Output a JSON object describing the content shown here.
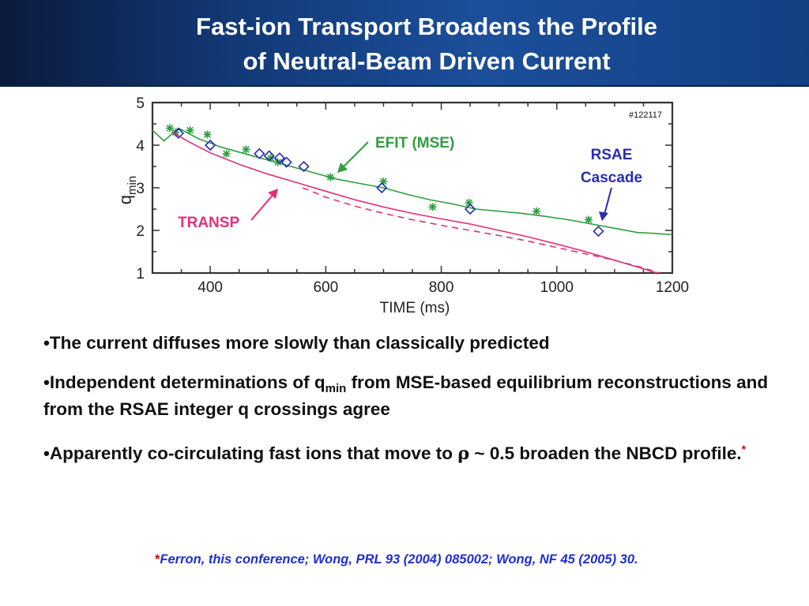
{
  "title": {
    "line1": "Fast-ion Transport Broadens the Profile",
    "line2": "of Neutral-Beam Driven Current"
  },
  "colors": {
    "efit": "#2f9e3f",
    "transp": "#e0307a",
    "rsae": "#2a2db0",
    "arrow_efit": "#2f9e3f",
    "arrow_transp": "#e0307a",
    "arrow_rsae": "#2a2db0"
  },
  "chart_data": {
    "type": "line",
    "xlabel": "TIME (ms)",
    "ylabel_main": "q",
    "ylabel_sub": "min",
    "xlim": [
      300,
      1200
    ],
    "ylim": [
      1,
      5
    ],
    "xticks": [
      400,
      600,
      800,
      1000,
      1200
    ],
    "yticks": [
      1,
      2,
      3,
      4,
      5
    ],
    "shot_label": "#122117",
    "annotations": {
      "efit": "EFIT (MSE)",
      "rsae_line1": "RSAE",
      "rsae_line2": "Cascade",
      "transp": "TRANSP"
    },
    "series": [
      {
        "key": "efit_line",
        "style": "solid",
        "color": "efit",
        "x": [
          300,
          320,
          345,
          380,
          420,
          460,
          500,
          540,
          580,
          620,
          660,
          700,
          740,
          780,
          820,
          860,
          900,
          940,
          980,
          1020,
          1060,
          1100,
          1140,
          1170,
          1200
        ],
        "y": [
          4.35,
          4.1,
          4.4,
          4.15,
          3.95,
          3.8,
          3.65,
          3.5,
          3.35,
          3.2,
          3.1,
          3.0,
          2.85,
          2.72,
          2.62,
          2.5,
          2.45,
          2.4,
          2.33,
          2.25,
          2.15,
          2.05,
          1.95,
          1.93,
          1.9
        ]
      },
      {
        "key": "efit_points",
        "style": "star",
        "color": "efit",
        "x": [
          330,
          340,
          365,
          395,
          428,
          462,
          505,
          517,
          608,
          700,
          785,
          848,
          965,
          1055
        ],
        "y": [
          4.4,
          4.3,
          4.35,
          4.25,
          3.8,
          3.9,
          3.7,
          3.6,
          3.25,
          3.15,
          2.55,
          2.65,
          2.45,
          2.25
        ]
      },
      {
        "key": "rsae_points",
        "style": "diamond",
        "color": "rsae",
        "x": [
          345,
          400,
          485,
          502,
          520,
          532,
          562,
          697,
          850,
          1072
        ],
        "y": [
          4.28,
          4.0,
          3.8,
          3.75,
          3.7,
          3.6,
          3.5,
          3.0,
          2.5,
          1.98
        ]
      },
      {
        "key": "transp_solid",
        "style": "solid",
        "color": "transp",
        "x": [
          335,
          360,
          400,
          450,
          500,
          550,
          600,
          650,
          700,
          750,
          800,
          850,
          900,
          950,
          1000,
          1050,
          1100,
          1150,
          1180
        ],
        "y": [
          4.3,
          4.1,
          3.82,
          3.55,
          3.32,
          3.12,
          2.92,
          2.72,
          2.55,
          2.4,
          2.27,
          2.15,
          2.0,
          1.85,
          1.68,
          1.5,
          1.3,
          1.1,
          0.97
        ]
      },
      {
        "key": "transp_dashed",
        "style": "dashed",
        "color": "transp",
        "x": [
          560,
          600,
          650,
          700,
          750,
          800,
          850,
          900,
          950,
          1000,
          1050,
          1100,
          1150,
          1185
        ],
        "y": [
          3.0,
          2.78,
          2.57,
          2.4,
          2.25,
          2.12,
          2.0,
          1.88,
          1.75,
          1.6,
          1.45,
          1.3,
          1.12,
          0.97
        ]
      }
    ]
  },
  "bullets": {
    "b1": "•The current diffuses more slowly than classically predicted",
    "b2_pre": "•Independent determinations of q",
    "b2_sub": "min",
    "b2_post": " from MSE-based equilibrium reconstructions and from the RSAE integer q crossings agree",
    "b3_pre": "•Apparently co-circulating fast ions that move to ",
    "b3_symbol": "ρ",
    "b3_post": " ~ 0.5 broaden the NBCD profile.",
    "b3_star": "*"
  },
  "footnote": {
    "star": "*",
    "text": "Ferron, this conference;  Wong, PRL 93 (2004) 085002; Wong, NF 45 (2005) 30."
  }
}
